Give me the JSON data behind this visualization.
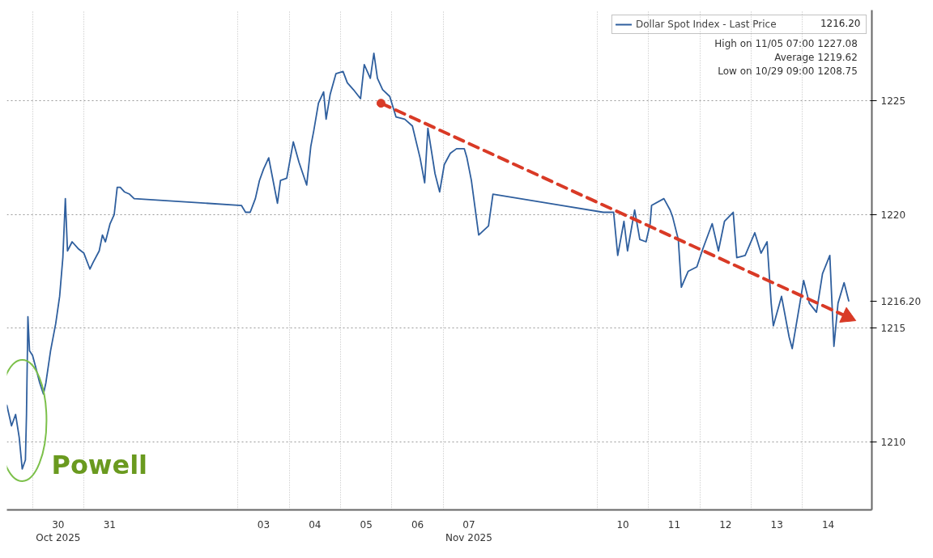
{
  "chart_data": {
    "type": "line",
    "xlim": [
      "2025-10-29T12:00",
      "2025-11-15T08:24"
    ],
    "ylim": [
      1207,
      1229
    ],
    "xticks": [
      {
        "value": "2025-10-30",
        "label": null
      },
      {
        "value": "2025-10-31",
        "label": null
      },
      {
        "value": "2025-11-03",
        "label": null
      },
      {
        "value": "2025-11-04",
        "label": null
      },
      {
        "value": "2025-11-05",
        "label": null
      },
      {
        "value": "2025-11-06",
        "label": null
      },
      {
        "value": "2025-11-07",
        "label": null
      },
      {
        "value": "2025-11-10",
        "label": null
      },
      {
        "value": "2025-11-11",
        "label": null
      },
      {
        "value": "2025-11-12",
        "label": null
      },
      {
        "value": "2025-11-13",
        "label": null
      },
      {
        "value": "2025-11-14",
        "label": null
      },
      {
        "value": "2025-10-30T12:00",
        "label": "30\nOct 2025"
      },
      {
        "value": "2025-10-31T12:00",
        "label": "31"
      },
      {
        "value": "2025-11-03T12:00",
        "label": "03"
      },
      {
        "value": "2025-11-04T12:00",
        "label": "04"
      },
      {
        "value": "2025-11-05T12:00",
        "label": "05"
      },
      {
        "value": "2025-11-06T12:00",
        "label": "06"
      },
      {
        "value": "2025-11-07T12:00",
        "label": "07\nNov 2025"
      },
      {
        "value": "2025-11-10T12:00",
        "label": "10"
      },
      {
        "value": "2025-11-11T12:00",
        "label": "11"
      },
      {
        "value": "2025-11-12T12:00",
        "label": "12"
      },
      {
        "value": "2025-11-13T12:00",
        "label": "13"
      },
      {
        "value": "2025-11-14T12:00",
        "label": "14"
      }
    ],
    "yticks": [
      1210,
      1215,
      {
        "value": 1216.2,
        "label": "1216.20"
      },
      1220,
      1225
    ],
    "grid": true,
    "legend": "top right",
    "line_style": "solid",
    "series": [
      {
        "name": "Dollar Spot Index - Last Price",
        "color": "#2f5f9e",
        "x": [
          "2025-10-29T12:00",
          "2025-10-29T14:10",
          "2025-10-29T16:05",
          "2025-10-29T17:45",
          "2025-10-29T19:10",
          "2025-10-29T20:40",
          "2025-10-29T21:10",
          "2025-10-29T21:50",
          "2025-10-29T22:35",
          "2025-10-30T00:00",
          "2025-10-30T01:25",
          "2025-10-30T03:20",
          "2025-10-30T05:05",
          "2025-10-30T06:15",
          "2025-10-30T08:25",
          "2025-10-30T10:50",
          "2025-10-30T12:40",
          "2025-10-30T14:10",
          "2025-10-30T15:20",
          "2025-10-30T16:20",
          "2025-10-30T18:30",
          "2025-10-30T21:20",
          "2025-10-31T00:00",
          "2025-10-31T02:50",
          "2025-10-31T04:20",
          "2025-10-31T07:10",
          "2025-10-31T08:40",
          "2025-10-31T10:05",
          "2025-10-31T12:15",
          "2025-10-31T14:10",
          "2025-10-31T15:35",
          "2025-10-31T17:00",
          "2025-10-31T18:55",
          "2025-10-31T21:20",
          "2025-10-31T23:30",
          "2025-11-03T01:40",
          "2025-11-03T03:35",
          "2025-11-03T05:45",
          "2025-11-03T08:10",
          "2025-11-03T10:05",
          "2025-11-03T12:00",
          "2025-11-03T14:25",
          "2025-11-03T15:50",
          "2025-11-03T18:30",
          "2025-11-03T19:55",
          "2025-11-03T22:50",
          "2025-11-04T01:55",
          "2025-11-04T04:35",
          "2025-11-04T08:10",
          "2025-11-04T10:05",
          "2025-11-04T11:30",
          "2025-11-04T13:40",
          "2025-11-04T16:05",
          "2025-11-04T17:15",
          "2025-11-04T19:10",
          "2025-11-04T21:50",
          "2025-11-05T01:10",
          "2025-11-05T03:10",
          "2025-11-05T06:00",
          "2025-11-05T09:20",
          "2025-11-05T11:05",
          "2025-11-05T13:55",
          "2025-11-05T15:35",
          "2025-11-05T17:15",
          "2025-11-05T19:40",
          "2025-11-05T23:00",
          "2025-11-06T01:55",
          "2025-11-06T06:00",
          "2025-11-06T09:35",
          "2025-11-06T13:10",
          "2025-11-06T15:20",
          "2025-11-06T16:50",
          "2025-11-06T20:10",
          "2025-11-06T22:20",
          "2025-11-07T00:30",
          "2025-11-07T03:20",
          "2025-11-07T06:15",
          "2025-11-07T09:50",
          "2025-11-07T11:05",
          "2025-11-07T13:10",
          "2025-11-07T16:35",
          "2025-11-07T21:10",
          "2025-11-07T23:15",
          "2025-11-10T02:50",
          "2025-11-10T07:40",
          "2025-11-10T09:35",
          "2025-11-10T12:30",
          "2025-11-10T14:10",
          "2025-11-10T17:30",
          "2025-11-10T19:55",
          "2025-11-10T22:50",
          "2025-11-11T00:45",
          "2025-11-11T01:25",
          "2025-11-11T07:10",
          "2025-11-11T10:05",
          "2025-11-11T11:15",
          "2025-11-11T13:55",
          "2025-11-11T15:20",
          "2025-11-11T18:30",
          "2025-11-11T22:35",
          "2025-11-12T01:25",
          "2025-11-12T05:45",
          "2025-11-12T08:40",
          "2025-11-12T11:30",
          "2025-11-12T15:35",
          "2025-11-12T17:15",
          "2025-11-12T21:10",
          "2025-11-13T01:40",
          "2025-11-13T04:35",
          "2025-11-13T07:25",
          "2025-11-13T09:20",
          "2025-11-13T10:20",
          "2025-11-13T14:10",
          "2025-11-13T17:45",
          "2025-11-13T19:10",
          "2025-11-13T22:35",
          "2025-11-14T00:30",
          "2025-11-14T03:10",
          "2025-11-14T06:30",
          "2025-11-14T09:20",
          "2025-11-14T12:45",
          "2025-11-14T14:40",
          "2025-11-14T16:35",
          "2025-11-14T19:25",
          "2025-11-14T21:35"
        ],
        "values": [
          1211.6,
          1210.7,
          1211.2,
          1210.2,
          1208.8,
          1209.2,
          1211.2,
          1215.5,
          1214.0,
          1213.8,
          1213.3,
          1212.6,
          1212.1,
          1212.6,
          1214.0,
          1215.2,
          1216.4,
          1218.1,
          1220.7,
          1218.4,
          1218.8,
          1218.5,
          1218.3,
          1217.6,
          1217.9,
          1218.4,
          1219.1,
          1218.8,
          1219.6,
          1220.0,
          1221.2,
          1221.2,
          1221.0,
          1220.9,
          1220.7,
          1220.4,
          1220.1,
          1220.1,
          1220.7,
          1221.5,
          1222.0,
          1222.5,
          1221.8,
          1220.5,
          1221.5,
          1221.6,
          1223.2,
          1222.3,
          1221.3,
          1223.0,
          1223.7,
          1224.9,
          1225.4,
          1224.2,
          1225.3,
          1226.2,
          1226.3,
          1225.8,
          1225.5,
          1225.1,
          1226.6,
          1226.0,
          1227.1,
          1226.0,
          1225.5,
          1225.2,
          1224.3,
          1224.2,
          1223.9,
          1222.5,
          1221.4,
          1223.8,
          1221.8,
          1221.0,
          1222.2,
          1222.7,
          1222.9,
          1222.9,
          1222.5,
          1221.5,
          1219.1,
          1219.5,
          1220.9,
          1220.1,
          1220.1,
          1218.2,
          1219.7,
          1218.4,
          1220.2,
          1218.9,
          1218.8,
          1219.6,
          1220.4,
          1220.7,
          1220.2,
          1219.9,
          1218.9,
          1216.8,
          1217.5,
          1217.7,
          1218.5,
          1219.6,
          1218.4,
          1219.7,
          1220.1,
          1218.1,
          1218.2,
          1219.2,
          1218.3,
          1218.8,
          1216.1,
          1215.1,
          1216.4,
          1214.6,
          1214.1,
          1216.0,
          1217.1,
          1216.1,
          1215.7,
          1217.4,
          1218.2,
          1214.2,
          1216.1,
          1217.0,
          1216.2
        ],
        "value_labels": [
          null,
          null,
          null,
          null,
          null,
          null,
          null,
          null,
          null,
          null,
          null,
          null,
          null,
          null,
          null,
          null,
          null,
          null,
          null,
          null,
          null,
          null,
          null,
          null,
          null,
          null,
          null,
          null,
          null,
          null,
          null,
          null,
          null,
          null,
          null,
          null,
          null,
          null,
          null,
          null,
          null,
          null,
          null,
          null,
          null,
          null,
          null,
          null,
          null,
          null,
          null,
          null,
          null,
          null,
          null,
          null,
          null,
          null,
          null,
          null,
          null,
          null,
          null,
          null,
          null,
          null,
          null,
          null,
          null,
          null,
          null,
          null,
          null,
          null,
          null,
          null,
          null,
          null,
          null,
          null,
          null,
          null,
          null,
          null,
          null,
          null,
          null,
          null,
          null,
          null,
          null,
          null,
          null,
          null,
          null,
          null,
          null,
          null,
          null,
          null,
          null,
          null,
          null,
          null,
          null,
          null,
          null,
          null,
          null,
          null,
          null,
          null,
          null,
          null,
          null,
          null,
          null,
          null,
          null,
          null,
          null,
          null,
          null,
          null,
          null
        ]
      },
      {
        "color": "#d93a26",
        "line_style": "dashed",
        "marker": "circle",
        "x": [
          "2025-11-05T18:55",
          "2025-11-14T20:55"
        ],
        "values": [
          1224.9,
          1215.5
        ]
      }
    ],
    "annotations": [
      "1216.20",
      "High on 11/05 07:00   1227.08",
      "Average   1219.62",
      "Low on 10/29 09:00   1208.75",
      {
        "text": "Powell",
        "x": "2025-10-29T19:10",
        "y": 1208.8
      }
    ]
  }
}
